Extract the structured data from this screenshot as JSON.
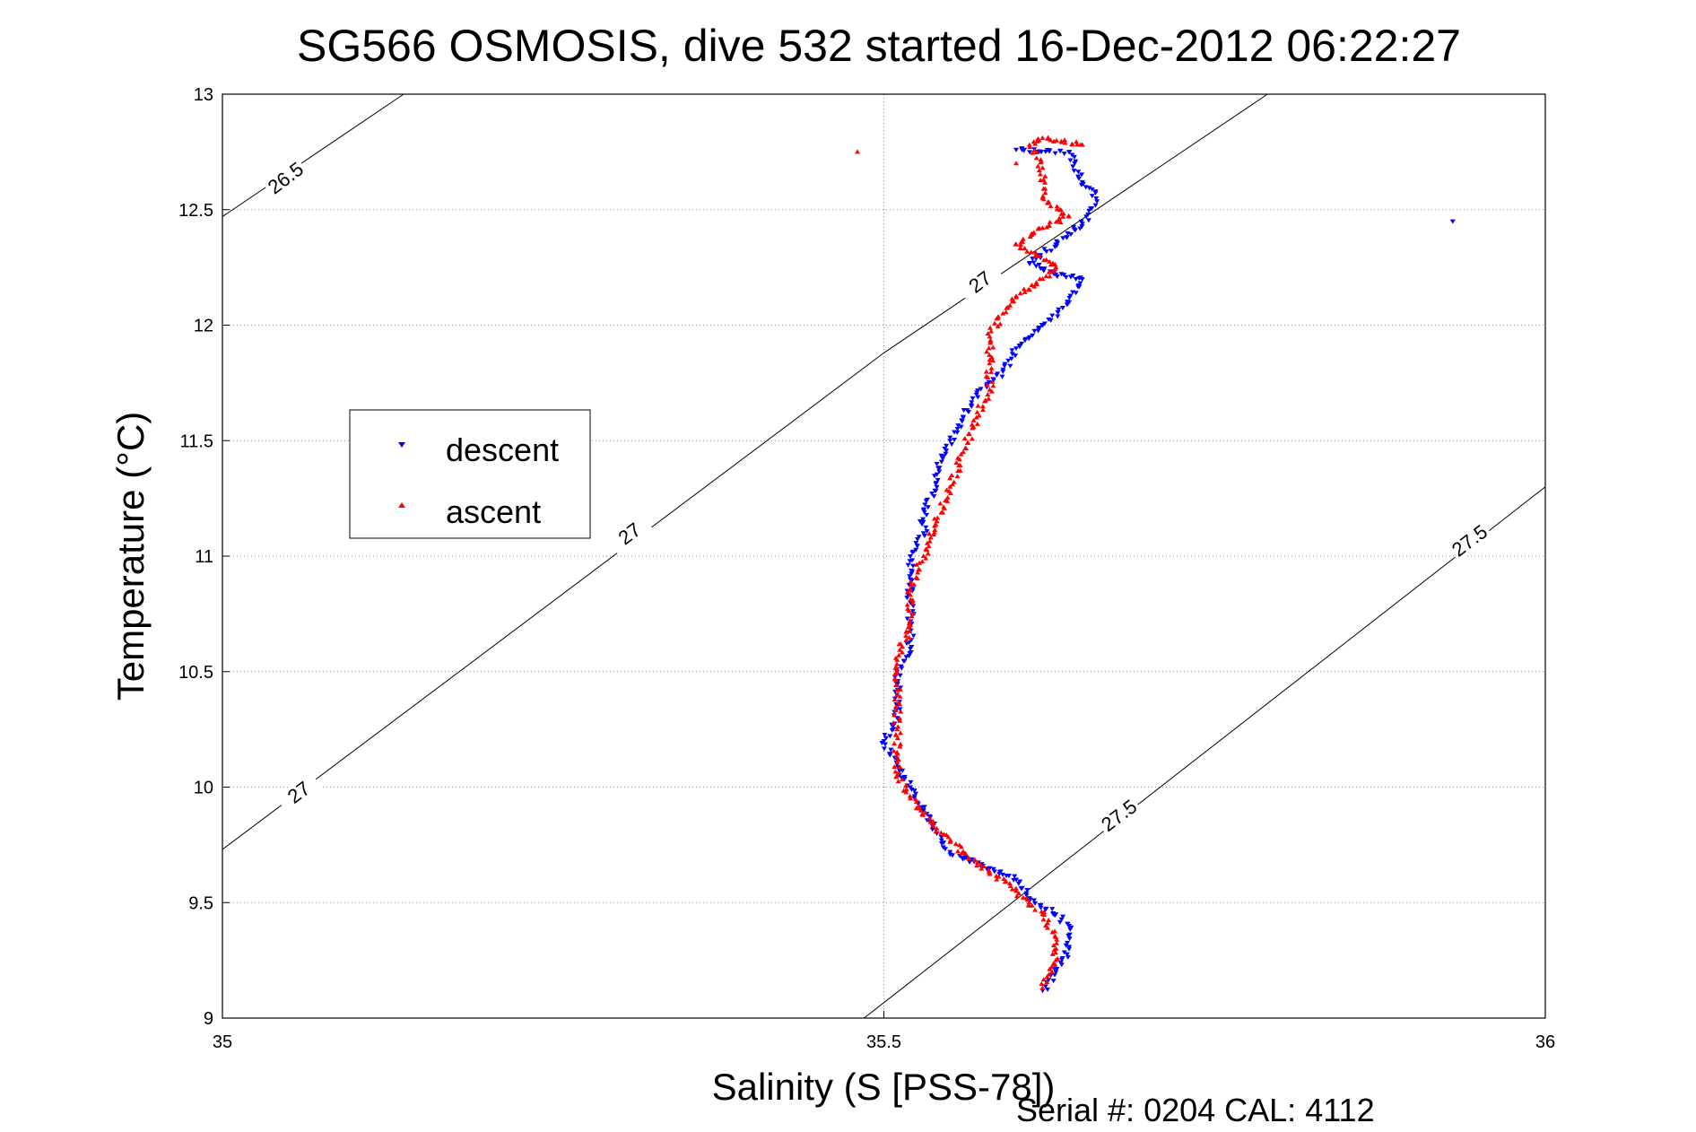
{
  "chart_data": {
    "type": "scatter",
    "title": "SG566 OSMOSIS, dive 532 started 16-Dec-2012 06:22:27",
    "xlabel": "Salinity (S [PSS-78])",
    "ylabel": "Temperature (°C)",
    "xlim": [
      35,
      36
    ],
    "ylim": [
      9,
      13
    ],
    "xticks": [
      "35",
      "35.5",
      "36"
    ],
    "yticks": [
      "9",
      "9.5",
      "10",
      "10.5",
      "11",
      "11.5",
      "12",
      "12.5",
      "13"
    ],
    "grid": true,
    "legend_position": "left",
    "footer": "Serial #: 0204  CAL: 4112",
    "density_contours": [
      {
        "label": "26.5",
        "points": [
          [
            35.0,
            12.47
          ],
          [
            35.137,
            13.0
          ]
        ]
      },
      {
        "label": "27",
        "points": [
          [
            35.0,
            9.73
          ],
          [
            35.5,
            11.88
          ],
          [
            35.79,
            13.0
          ]
        ]
      },
      {
        "label": "27.5",
        "points": [
          [
            35.485,
            9.0
          ],
          [
            36.0,
            11.3
          ]
        ]
      }
    ],
    "contour_labels": [
      {
        "text": "26.5",
        "x": 35.05,
        "y": 12.62
      },
      {
        "text": "27",
        "x": 35.31,
        "y": 11.08
      },
      {
        "text": "27",
        "x": 35.06,
        "y": 9.96
      },
      {
        "text": "27",
        "x": 35.575,
        "y": 12.17
      },
      {
        "text": "27.5",
        "x": 35.68,
        "y": 9.86
      },
      {
        "text": "27.5",
        "x": 35.945,
        "y": 11.05
      }
    ],
    "series": [
      {
        "name": "descent",
        "color": "#0000ff",
        "marker": "triangle-down",
        "points": [
          [
            35.6,
            12.76
          ],
          [
            35.64,
            12.75
          ],
          [
            35.65,
            12.62
          ],
          [
            35.66,
            12.58
          ],
          [
            35.66,
            12.52
          ],
          [
            35.65,
            12.44
          ],
          [
            35.63,
            12.35
          ],
          [
            35.61,
            12.27
          ],
          [
            35.63,
            12.22
          ],
          [
            35.65,
            12.2
          ],
          [
            35.64,
            12.1
          ],
          [
            35.62,
            12.0
          ],
          [
            35.6,
            11.9
          ],
          [
            35.59,
            11.8
          ],
          [
            35.57,
            11.7
          ],
          [
            35.56,
            11.6
          ],
          [
            35.55,
            11.5
          ],
          [
            35.54,
            11.4
          ],
          [
            35.54,
            11.3
          ],
          [
            35.53,
            11.2
          ],
          [
            35.53,
            11.1
          ],
          [
            35.52,
            11.0
          ],
          [
            35.52,
            10.9
          ],
          [
            35.52,
            10.8
          ],
          [
            35.52,
            10.7
          ],
          [
            35.52,
            10.6
          ],
          [
            35.51,
            10.5
          ],
          [
            35.51,
            10.4
          ],
          [
            35.51,
            10.3
          ],
          [
            35.5,
            10.2
          ],
          [
            35.51,
            10.1
          ],
          [
            35.52,
            10.0
          ],
          [
            35.53,
            9.9
          ],
          [
            35.54,
            9.8
          ],
          [
            35.55,
            9.72
          ],
          [
            35.58,
            9.65
          ],
          [
            35.6,
            9.6
          ],
          [
            35.61,
            9.52
          ],
          [
            35.63,
            9.45
          ],
          [
            35.64,
            9.4
          ],
          [
            35.64,
            9.3
          ],
          [
            35.63,
            9.2
          ],
          [
            35.62,
            9.12
          ],
          [
            35.93,
            12.45
          ]
        ]
      },
      {
        "name": "ascent",
        "color": "#ff0000",
        "marker": "triangle-up",
        "points": [
          [
            35.62,
            9.13
          ],
          [
            35.63,
            9.25
          ],
          [
            35.63,
            9.35
          ],
          [
            35.62,
            9.45
          ],
          [
            35.6,
            9.55
          ],
          [
            35.58,
            9.63
          ],
          [
            35.56,
            9.72
          ],
          [
            35.54,
            9.82
          ],
          [
            35.52,
            9.95
          ],
          [
            35.51,
            10.05
          ],
          [
            35.51,
            10.15
          ],
          [
            35.51,
            10.25
          ],
          [
            35.51,
            10.4
          ],
          [
            35.51,
            10.55
          ],
          [
            35.52,
            10.7
          ],
          [
            35.52,
            10.85
          ],
          [
            35.53,
            11.0
          ],
          [
            35.54,
            11.15
          ],
          [
            35.55,
            11.3
          ],
          [
            35.56,
            11.45
          ],
          [
            35.57,
            11.6
          ],
          [
            35.58,
            11.72
          ],
          [
            35.58,
            11.85
          ],
          [
            35.58,
            11.95
          ],
          [
            35.59,
            12.05
          ],
          [
            35.6,
            12.12
          ],
          [
            35.62,
            12.2
          ],
          [
            35.63,
            12.25
          ],
          [
            35.6,
            12.35
          ],
          [
            35.62,
            12.42
          ],
          [
            35.64,
            12.47
          ],
          [
            35.62,
            12.55
          ],
          [
            35.62,
            12.68
          ],
          [
            35.61,
            12.78
          ],
          [
            35.62,
            12.81
          ],
          [
            35.65,
            12.78
          ],
          [
            35.48,
            12.75
          ],
          [
            35.6,
            12.7
          ]
        ]
      }
    ]
  }
}
